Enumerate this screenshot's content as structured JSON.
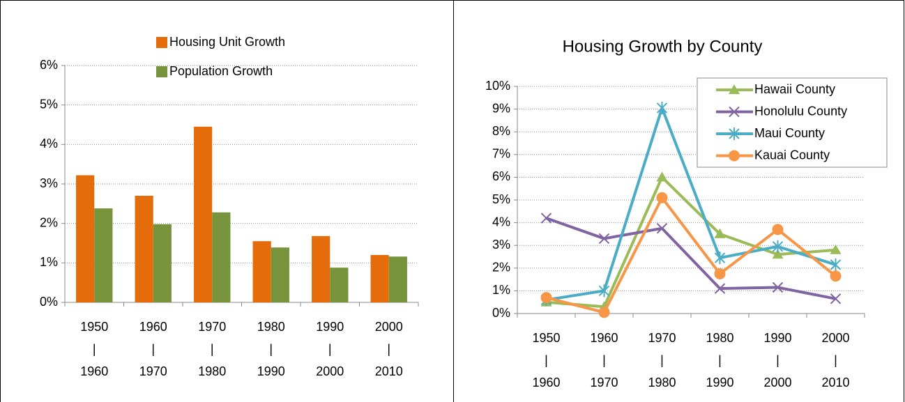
{
  "chart_data": [
    {
      "type": "bar",
      "categories": [
        [
          "1950",
          "|",
          "1960"
        ],
        [
          "1960",
          "|",
          "1970"
        ],
        [
          "1970",
          "|",
          "1980"
        ],
        [
          "1980",
          "|",
          "1990"
        ],
        [
          "1990",
          "|",
          "2000"
        ],
        [
          "2000",
          "|",
          "2010"
        ]
      ],
      "series": [
        {
          "name": "Housing Unit Growth",
          "color": "#e46c0a",
          "values": [
            3.22,
            2.7,
            4.45,
            1.55,
            1.68,
            1.2
          ]
        },
        {
          "name": "Population Growth",
          "color": "#77933c",
          "values": [
            2.38,
            1.98,
            2.28,
            1.39,
            0.88,
            1.16
          ]
        }
      ],
      "ylim": [
        0,
        6
      ],
      "yticks": [
        {
          "value": 0,
          "label": "0%"
        },
        {
          "value": 1,
          "label": "1%"
        },
        {
          "value": 2,
          "label": "2%"
        },
        {
          "value": 3,
          "label": "3%"
        },
        {
          "value": 4,
          "label": "4%"
        },
        {
          "value": 5,
          "label": "5%"
        },
        {
          "value": 6,
          "label": "6%"
        }
      ],
      "grid": true
    },
    {
      "type": "line",
      "title": "Housing Growth by County",
      "categories": [
        [
          "1950",
          "|",
          "1960"
        ],
        [
          "1960",
          "|",
          "1970"
        ],
        [
          "1970",
          "|",
          "1980"
        ],
        [
          "1980",
          "|",
          "1990"
        ],
        [
          "1990",
          "|",
          "2000"
        ],
        [
          "2000",
          "|",
          "2010"
        ]
      ],
      "series": [
        {
          "name": "Hawaii County",
          "color": "#9bbb59",
          "marker": "triangle",
          "values": [
            0.5,
            0.3,
            6.0,
            3.5,
            2.6,
            2.8
          ]
        },
        {
          "name": "Honolulu County",
          "color": "#8064a2",
          "marker": "x",
          "values": [
            4.2,
            3.3,
            3.75,
            1.1,
            1.15,
            0.65
          ]
        },
        {
          "name": "Maui County",
          "color": "#4bacc6",
          "marker": "star",
          "values": [
            0.6,
            1.0,
            9.05,
            2.45,
            2.95,
            2.15
          ]
        },
        {
          "name": "Kauai County",
          "color": "#f79646",
          "marker": "circle",
          "values": [
            0.7,
            0.05,
            5.1,
            1.75,
            3.7,
            1.65
          ]
        }
      ],
      "ylim": [
        0,
        10
      ],
      "yticks": [
        {
          "value": 0,
          "label": "0%"
        },
        {
          "value": 1,
          "label": "1%"
        },
        {
          "value": 2,
          "label": "2%"
        },
        {
          "value": 3,
          "label": "3%"
        },
        {
          "value": 4,
          "label": "4%"
        },
        {
          "value": 5,
          "label": "5%"
        },
        {
          "value": 6,
          "label": "6%"
        },
        {
          "value": 7,
          "label": "7%"
        },
        {
          "value": 8,
          "label": "8%"
        },
        {
          "value": 9,
          "label": "9%"
        },
        {
          "value": 10,
          "label": "10%"
        }
      ],
      "grid": true,
      "legend": "top-right"
    }
  ]
}
